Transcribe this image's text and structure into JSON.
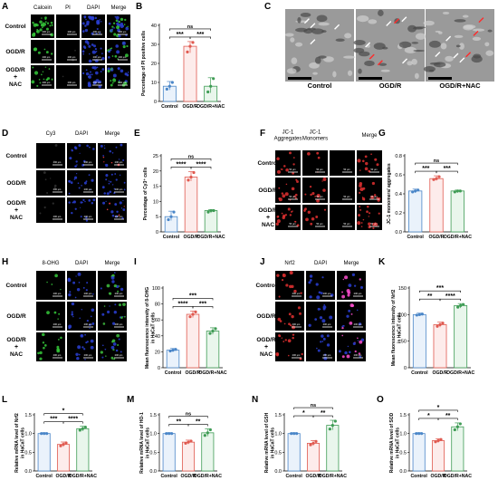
{
  "panels": [
    {
      "letter": "A"
    },
    {
      "letter": "B"
    },
    {
      "letter": "C"
    },
    {
      "letter": "D"
    },
    {
      "letter": "E"
    },
    {
      "letter": "F"
    },
    {
      "letter": "G"
    },
    {
      "letter": "H"
    },
    {
      "letter": "I"
    },
    {
      "letter": "J"
    },
    {
      "letter": "K"
    },
    {
      "letter": "L"
    },
    {
      "letter": "M"
    },
    {
      "letter": "N"
    },
    {
      "letter": "O"
    }
  ],
  "groups": [
    "Control",
    "OGD/R",
    "OGD/R+NAC"
  ],
  "micro_row_labels": {
    "standard": [
      "Control",
      "OGD/R",
      "OGD/R\n+\nNAC"
    ],
    "plain": [
      "Control",
      "OGD/R",
      "OGD/R"
    ],
    "nac_plus": "+",
    "nac": "NAC"
  },
  "micro_headers": {
    "A": [
      "Calcein",
      "PI",
      "DAPI",
      "Merge"
    ],
    "D": [
      "Cy3",
      "DAPI",
      "Merge"
    ],
    "F": [
      "JC-1\nAggregates",
      "JC-1\nMonomers",
      "",
      "Merge"
    ],
    "H": [
      "8-OHG",
      "DAPI",
      "Merge"
    ],
    "J": [
      "Nrf2",
      "DAPI",
      "Merge"
    ]
  },
  "scale_bars": {
    "A": "200 µm",
    "D": "200 µm",
    "F": "50 µm",
    "H": "200 µm",
    "J": "200 µm"
  },
  "tem_labels": [
    "Control",
    "OGD/R",
    "OGD/R+NAC"
  ],
  "colors": {
    "control": "#4a86c8",
    "ogdr": "#e05a50",
    "nac": "#3f9c55",
    "control_fill": "#eaf2fb",
    "ogdr_fill": "#fdeceb",
    "nac_fill": "#e9f6ec",
    "calcein": "#35c83a",
    "dapi": "#2a3fd6",
    "jc1": "#e03030",
    "ohg": "#3fbf3f",
    "nrf2": "#e23a3a"
  },
  "chart_data": [
    {
      "panel": "B",
      "type": "bar",
      "ylabel": "Percentage of PI positive cells",
      "categories": [
        "Control",
        "OGD/R",
        "OGD/R+NAC"
      ],
      "values": [
        8,
        29,
        8
      ],
      "points": [
        [
          6.5,
          8,
          10
        ],
        [
          26,
          29,
          31
        ],
        [
          5,
          8,
          12
        ]
      ],
      "ylim": [
        0,
        40
      ],
      "yticks": [
        0,
        10,
        20,
        30,
        40
      ],
      "sig": [
        {
          "from": 0,
          "to": 1,
          "label": "***"
        },
        {
          "from": 1,
          "to": 2,
          "label": "***"
        },
        {
          "from": 0,
          "to": 2,
          "label": "ns"
        }
      ]
    },
    {
      "panel": "E",
      "type": "bar",
      "ylabel": "Percentage of Cy3⁺ cells",
      "categories": [
        "Control",
        "OGD/R",
        "OGD/R+NAC"
      ],
      "values": [
        5,
        18,
        7
      ],
      "points": [
        [
          4,
          5,
          6.5
        ],
        [
          17,
          18,
          19.5
        ],
        [
          6.5,
          7,
          7
        ]
      ],
      "ylim": [
        0,
        25
      ],
      "yticks": [
        0,
        5,
        10,
        15,
        20,
        25
      ],
      "sig": [
        {
          "from": 0,
          "to": 1,
          "label": "****"
        },
        {
          "from": 1,
          "to": 2,
          "label": "****"
        },
        {
          "from": 0,
          "to": 2,
          "label": "ns"
        }
      ]
    },
    {
      "panel": "G",
      "type": "bar",
      "ylabel": "JC-1 monomers/ aggregates",
      "categories": [
        "Control",
        "OGD/R",
        "OGD/R+NAC"
      ],
      "values": [
        0.43,
        0.56,
        0.43
      ],
      "points": [
        [
          0.42,
          0.43,
          0.44
        ],
        [
          0.55,
          0.56,
          0.58
        ],
        [
          0.42,
          0.43,
          0.43
        ]
      ],
      "ylim": [
        0,
        0.8
      ],
      "yticks": [
        0.0,
        0.2,
        0.4,
        0.6,
        0.8
      ],
      "sig": [
        {
          "from": 0,
          "to": 1,
          "label": "***"
        },
        {
          "from": 1,
          "to": 2,
          "label": "***"
        },
        {
          "from": 0,
          "to": 2,
          "label": "ns"
        }
      ]
    },
    {
      "panel": "I",
      "type": "bar",
      "ylabel": "Mean fluorescence intensity of 8-OHG\nin HaCaT cells",
      "categories": [
        "Control",
        "OGD/R",
        "OGD/R+NAC"
      ],
      "values": [
        22,
        67,
        46
      ],
      "points": [
        [
          21,
          22,
          23
        ],
        [
          64,
          67,
          70
        ],
        [
          43,
          46,
          49
        ]
      ],
      "ylim": [
        0,
        100
      ],
      "yticks": [
        0,
        20,
        40,
        60,
        80,
        100
      ],
      "sig": [
        {
          "from": 0,
          "to": 1,
          "label": "****"
        },
        {
          "from": 1,
          "to": 2,
          "label": "***"
        },
        {
          "from": 0,
          "to": 2,
          "label": "***"
        }
      ]
    },
    {
      "panel": "K",
      "type": "bar",
      "ylabel": "Mean fluorescence intensity of Nrf2\nin HaCaT cells",
      "categories": [
        "Control",
        "OGD/R",
        "OGD/R+NAC"
      ],
      "values": [
        100,
        81,
        117
      ],
      "points": [
        [
          99,
          100,
          101
        ],
        [
          78,
          81,
          84
        ],
        [
          114,
          117,
          119
        ]
      ],
      "ylim": [
        0,
        150
      ],
      "yticks": [
        0,
        50,
        100,
        150
      ],
      "sig": [
        {
          "from": 0,
          "to": 1,
          "label": "**"
        },
        {
          "from": 1,
          "to": 2,
          "label": "****"
        },
        {
          "from": 0,
          "to": 2,
          "label": "***"
        }
      ]
    },
    {
      "panel": "L",
      "type": "bar",
      "ylabel": "Relative mRNA level of Nrf2\nin HaCaT cells",
      "categories": [
        "Control",
        "OGD/R",
        "OGD/R+NAC"
      ],
      "values": [
        1.0,
        0.71,
        1.13
      ],
      "points": [
        [
          1.0,
          1.0,
          1.0
        ],
        [
          0.67,
          0.71,
          0.75
        ],
        [
          1.09,
          1.13,
          1.17
        ]
      ],
      "ylim": [
        0,
        1.5
      ],
      "yticks": [
        0.0,
        0.5,
        1.0,
        1.5
      ],
      "sig": [
        {
          "from": 0,
          "to": 1,
          "label": "***"
        },
        {
          "from": 1,
          "to": 2,
          "label": "****"
        },
        {
          "from": 0,
          "to": 2,
          "label": "*"
        }
      ]
    },
    {
      "panel": "M",
      "type": "bar",
      "ylabel": "Relative mRNA level of HO-1\nin HaCaT cells",
      "categories": [
        "Control",
        "OGD/R",
        "OGD/R+NAC"
      ],
      "values": [
        1.0,
        0.77,
        1.02
      ],
      "points": [
        [
          1.0,
          1.0,
          1.0
        ],
        [
          0.74,
          0.77,
          0.8
        ],
        [
          0.95,
          1.02,
          1.1
        ]
      ],
      "ylim": [
        0,
        1.5
      ],
      "yticks": [
        0.0,
        0.5,
        1.0,
        1.5
      ],
      "sig": [
        {
          "from": 0,
          "to": 1,
          "label": "**"
        },
        {
          "from": 1,
          "to": 2,
          "label": "**"
        },
        {
          "from": 0,
          "to": 2,
          "label": "ns"
        }
      ]
    },
    {
      "panel": "N",
      "type": "bar",
      "ylabel": "Relative mRNA level of GSH\nin HaCaT cells",
      "categories": [
        "Control",
        "OGD/R",
        "OGD/R+NAC"
      ],
      "values": [
        1.0,
        0.74,
        1.22
      ],
      "points": [
        [
          1.0,
          1.0,
          1.0
        ],
        [
          0.7,
          0.74,
          0.79
        ],
        [
          1.12,
          1.22,
          1.33
        ]
      ],
      "ylim": [
        0,
        1.5
      ],
      "yticks": [
        0.0,
        0.5,
        1.0,
        1.5
      ],
      "sig": [
        {
          "from": 0,
          "to": 1,
          "label": "*"
        },
        {
          "from": 1,
          "to": 2,
          "label": "**"
        },
        {
          "from": 0,
          "to": 2,
          "label": "ns"
        }
      ]
    },
    {
      "panel": "O",
      "type": "bar",
      "ylabel": "Relative mRNA level of SOD\nin HaCaT cells",
      "categories": [
        "Control",
        "OGD/R",
        "OGD/R+NAC"
      ],
      "values": [
        1.0,
        0.81,
        1.18
      ],
      "points": [
        [
          1.0,
          1.0,
          1.0
        ],
        [
          0.78,
          0.81,
          0.84
        ],
        [
          1.1,
          1.18,
          1.26
        ]
      ],
      "ylim": [
        0,
        1.5
      ],
      "yticks": [
        0.0,
        0.5,
        1.0,
        1.5
      ],
      "sig": [
        {
          "from": 0,
          "to": 1,
          "label": "*"
        },
        {
          "from": 1,
          "to": 2,
          "label": "**"
        },
        {
          "from": 0,
          "to": 2,
          "label": "*"
        }
      ]
    }
  ]
}
